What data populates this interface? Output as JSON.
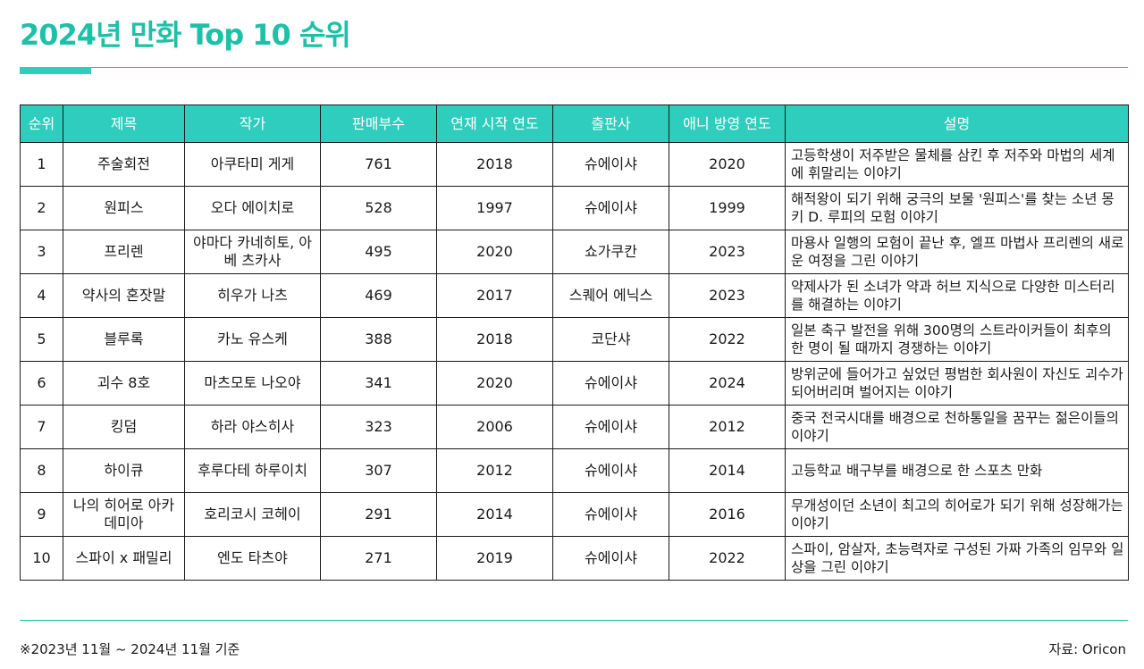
{
  "title": "2024년 만화 Top 10 순위",
  "colors": {
    "accent": "#2ecdbd",
    "title": "#1fc0a8",
    "border": "#1a1a1a"
  },
  "table": {
    "headers": [
      "순위",
      "제목",
      "작가",
      "판매부수",
      "연재 시작 연도",
      "출판사",
      "애니 방영 연도",
      "설명"
    ],
    "rows": [
      {
        "rank": "1",
        "title": "주술회전",
        "author": "아쿠타미 게게",
        "sales": "761",
        "start": "2018",
        "publisher": "슈에이샤",
        "anime": "2020",
        "desc": "고등학생이 저주받은 물체를 삼킨 후 저주와 마법의 세계에 휘말리는 이야기"
      },
      {
        "rank": "2",
        "title": "원피스",
        "author": "오다 에이치로",
        "sales": "528",
        "start": "1997",
        "publisher": "슈에이샤",
        "anime": "1999",
        "desc": "해적왕이 되기 위해 궁극의 보물 '원피스'를 찾는 소년 몽키 D. 루피의 모험 이야기"
      },
      {
        "rank": "3",
        "title": "프리렌",
        "author": "야마다 카네히토, 아베 츠카사",
        "sales": "495",
        "start": "2020",
        "publisher": "쇼가쿠칸",
        "anime": "2023",
        "desc": "마용사 일행의 모험이 끝난 후, 엘프 마법사 프리렌의 새로운 여정을 그린 이야기"
      },
      {
        "rank": "4",
        "title": "약사의 혼잣말",
        "author": "히우가 나츠",
        "sales": "469",
        "start": "2017",
        "publisher": "스퀘어 에닉스",
        "anime": "2023",
        "desc": "약제사가 된 소녀가 약과 허브 지식으로 다양한 미스터리를 해결하는 이야기"
      },
      {
        "rank": "5",
        "title": "블루록",
        "author": "카노 유스케",
        "sales": "388",
        "start": "2018",
        "publisher": "코단샤",
        "anime": "2022",
        "desc": "일본 축구 발전을 위해 300명의 스트라이커들이 최후의 한 명이 될 때까지 경쟁하는 이야기"
      },
      {
        "rank": "6",
        "title": "괴수 8호",
        "author": "마츠모토 나오야",
        "sales": "341",
        "start": "2020",
        "publisher": "슈에이샤",
        "anime": "2024",
        "desc": "방위군에 들어가고 싶었던 평범한 회사원이 자신도 괴수가 되어버리며 벌어지는 이야기"
      },
      {
        "rank": "7",
        "title": "킹덤",
        "author": "하라 야스히사",
        "sales": "323",
        "start": "2006",
        "publisher": "슈에이샤",
        "anime": "2012",
        "desc": "중국 전국시대를 배경으로 천하통일을 꿈꾸는 젊은이들의 이야기"
      },
      {
        "rank": "8",
        "title": "하이큐",
        "author": "후루다테 하루이치",
        "sales": "307",
        "start": "2012",
        "publisher": "슈에이샤",
        "anime": "2014",
        "desc": "고등학교 배구부를 배경으로 한 스포츠 만화"
      },
      {
        "rank": "9",
        "title": "나의 히어로 아카데미아",
        "author": "호리코시 코헤이",
        "sales": "291",
        "start": "2014",
        "publisher": "슈에이샤",
        "anime": "2016",
        "desc": "무개성이던 소년이 최고의 히어로가 되기 위해 성장해가는 이야기"
      },
      {
        "rank": "10",
        "title": "스파이 x 패밀리",
        "author": "엔도 타츠야",
        "sales": "271",
        "start": "2019",
        "publisher": "슈에이샤",
        "anime": "2022",
        "desc": "스파이, 암살자, 초능력자로 구성된 가짜 가족의 임무와 일상을 그린 이야기"
      }
    ]
  },
  "footnote": "※2023년 11월 ~ 2024년 11월 기준",
  "source": "자료: Oricon"
}
